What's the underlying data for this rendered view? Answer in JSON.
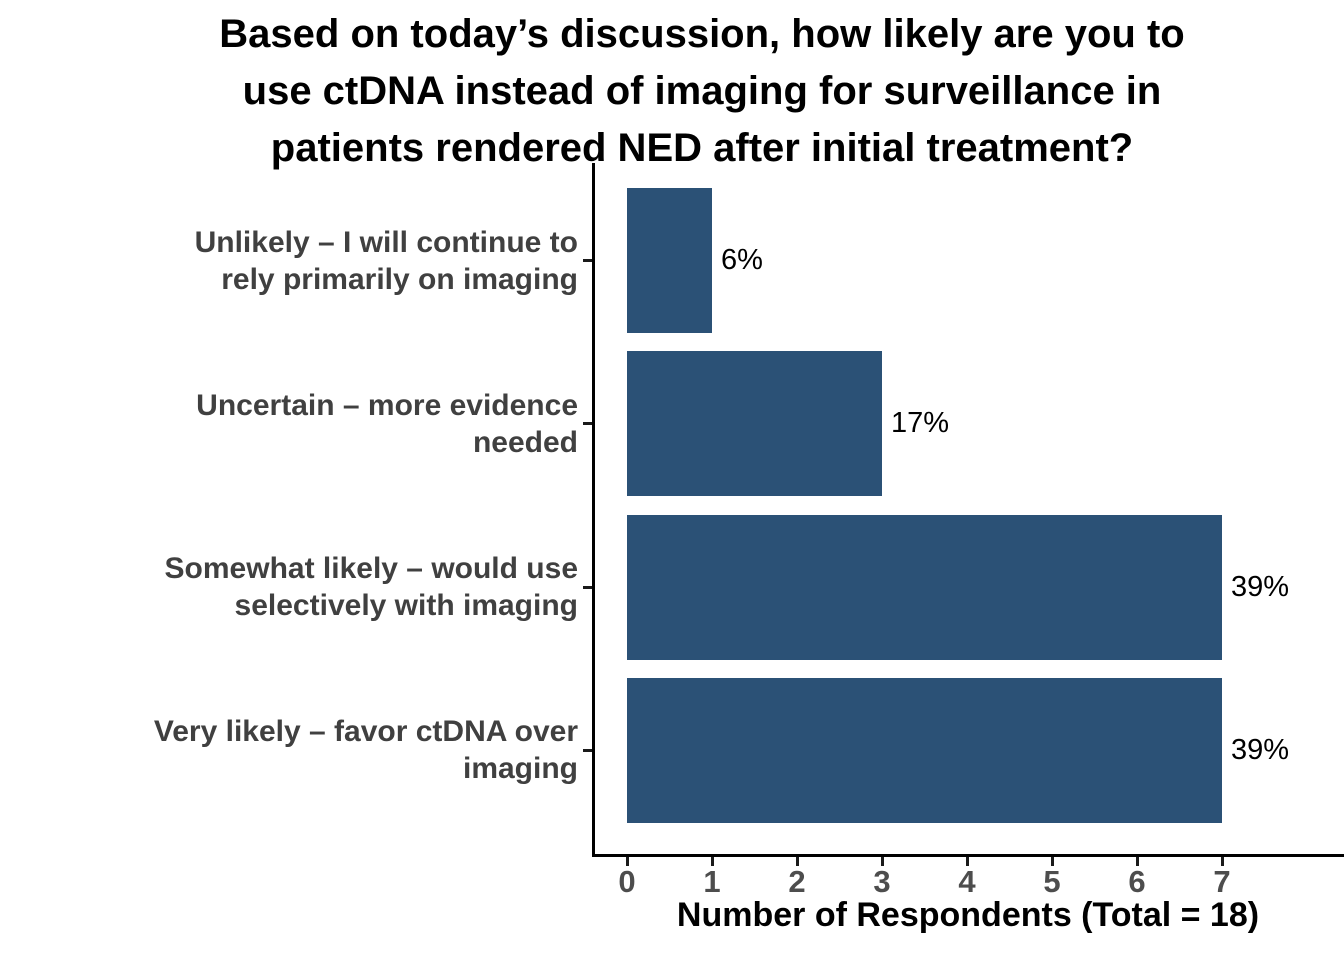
{
  "chart_data": {
    "type": "bar",
    "orientation": "horizontal",
    "title": "Based on today’s discussion, how likely are you to\nuse ctDNA instead of imaging for surveillance in\npatients rendered NED after initial treatment?",
    "categories": [
      "Unlikely – I will continue to\nrely primarily on imaging",
      "Uncertain – more evidence\nneeded",
      "Somewhat likely – would use\nselectively with imaging",
      "Very likely – favor ctDNA over\nimaging"
    ],
    "values": [
      1,
      3,
      7,
      7
    ],
    "bar_labels": [
      "6%",
      "17%",
      "39%",
      "39%"
    ],
    "xlabel": "Number of Respondents (Total = 18)",
    "x_ticks": [
      "0",
      "1",
      "2",
      "3",
      "4",
      "5",
      "6",
      "7"
    ],
    "xlim": [
      0,
      8.4
    ],
    "total_respondents": "18",
    "grid": "off",
    "legend": "none",
    "bar_color": "#2B5176",
    "category_label_color": "#404040",
    "tick_label_color": "#4d4d4d",
    "axis_color": "#000000",
    "value_label_color": "#000000",
    "background_color": "#ffffff"
  }
}
